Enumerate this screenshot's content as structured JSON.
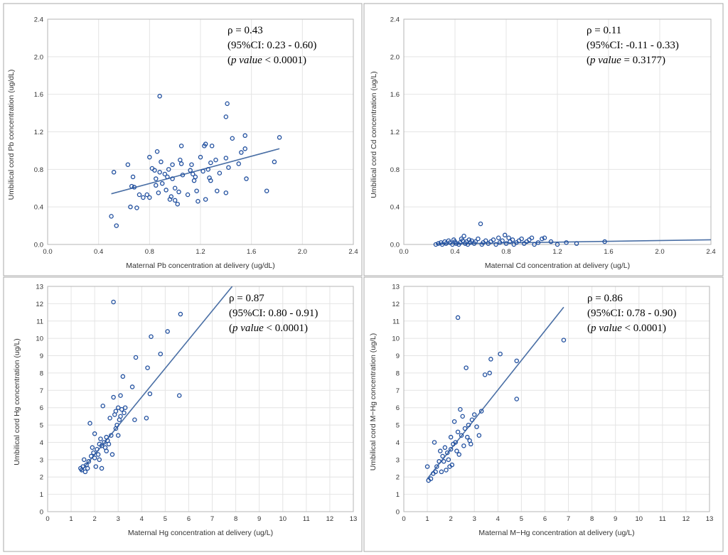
{
  "colors": {
    "point": "#1f4e9e",
    "fit_line": "#4a6fa5",
    "grid": "#e4e4e4",
    "frame": "#a8a8a8"
  },
  "chart_data": [
    {
      "type": "scatter",
      "id": "pb",
      "xlabel": "Maternal Pb concentration at delivery (ug/dL)",
      "ylabel": "Umbilical cord Pb concentration (ug/dL)",
      "xlim": [
        0,
        2.4
      ],
      "ylim": [
        0,
        2.4
      ],
      "xticks": [
        0,
        0.4,
        0.8,
        1.2,
        1.6,
        2.0,
        2.4
      ],
      "yticks": [
        0,
        0.4,
        0.8,
        1.2,
        1.6,
        2.0,
        2.4
      ],
      "tick_decimals": 1,
      "grid": true,
      "annotation": {
        "rho": "ρ = 0.43",
        "ci": "(95%CI: 0.23 - 0.60)",
        "p_label": "p value",
        "p_rest": " < 0.0001)"
      },
      "fit_line": {
        "x": [
          0.5,
          1.82
        ],
        "y": [
          0.54,
          1.02
        ]
      },
      "points": [
        [
          0.5,
          0.3
        ],
        [
          0.52,
          0.77
        ],
        [
          0.54,
          0.2
        ],
        [
          0.63,
          0.85
        ],
        [
          0.65,
          0.4
        ],
        [
          0.66,
          0.62
        ],
        [
          0.67,
          0.72
        ],
        [
          0.68,
          0.61
        ],
        [
          0.7,
          0.39
        ],
        [
          0.72,
          0.53
        ],
        [
          0.75,
          0.5
        ],
        [
          0.78,
          0.53
        ],
        [
          0.8,
          0.93
        ],
        [
          0.8,
          0.5
        ],
        [
          0.82,
          0.81
        ],
        [
          0.84,
          0.79
        ],
        [
          0.85,
          0.7
        ],
        [
          0.85,
          0.63
        ],
        [
          0.86,
          0.99
        ],
        [
          0.87,
          0.55
        ],
        [
          0.88,
          1.58
        ],
        [
          0.88,
          0.77
        ],
        [
          0.89,
          0.88
        ],
        [
          0.9,
          0.65
        ],
        [
          0.92,
          0.75
        ],
        [
          0.93,
          0.58
        ],
        [
          0.94,
          0.72
        ],
        [
          0.95,
          0.8
        ],
        [
          0.96,
          0.48
        ],
        [
          0.97,
          0.51
        ],
        [
          0.98,
          0.85
        ],
        [
          0.98,
          0.7
        ],
        [
          1.0,
          0.6
        ],
        [
          1.0,
          0.47
        ],
        [
          1.02,
          0.43
        ],
        [
          1.03,
          0.56
        ],
        [
          1.04,
          0.9
        ],
        [
          1.05,
          1.05
        ],
        [
          1.05,
          0.86
        ],
        [
          1.06,
          0.74
        ],
        [
          1.1,
          0.53
        ],
        [
          1.12,
          0.79
        ],
        [
          1.13,
          0.85
        ],
        [
          1.14,
          0.75
        ],
        [
          1.15,
          0.68
        ],
        [
          1.16,
          0.72
        ],
        [
          1.17,
          0.57
        ],
        [
          1.18,
          0.46
        ],
        [
          1.2,
          0.93
        ],
        [
          1.22,
          0.78
        ],
        [
          1.23,
          1.05
        ],
        [
          1.24,
          1.07
        ],
        [
          1.24,
          0.48
        ],
        [
          1.26,
          0.8
        ],
        [
          1.27,
          0.71
        ],
        [
          1.28,
          0.87
        ],
        [
          1.28,
          0.68
        ],
        [
          1.29,
          1.05
        ],
        [
          1.32,
          0.9
        ],
        [
          1.33,
          0.57
        ],
        [
          1.35,
          0.76
        ],
        [
          1.4,
          1.36
        ],
        [
          1.41,
          1.5
        ],
        [
          1.4,
          0.92
        ],
        [
          1.4,
          0.55
        ],
        [
          1.42,
          0.82
        ],
        [
          1.45,
          1.13
        ],
        [
          1.5,
          0.86
        ],
        [
          1.52,
          0.98
        ],
        [
          1.55,
          1.16
        ],
        [
          1.55,
          1.02
        ],
        [
          1.56,
          0.7
        ],
        [
          1.72,
          0.57
        ],
        [
          1.78,
          0.88
        ],
        [
          1.82,
          1.14
        ]
      ]
    },
    {
      "type": "scatter",
      "id": "cd",
      "xlabel": "Maternal Cd concentration at delivery (ug/L)",
      "ylabel": "Umbilical cord Cd concentration (ug/L)",
      "xlim": [
        0,
        2.4
      ],
      "ylim": [
        0,
        2.4
      ],
      "xticks": [
        0,
        0.4,
        0.8,
        1.2,
        1.6,
        2.0,
        2.4
      ],
      "yticks": [
        0,
        0.4,
        0.8,
        1.2,
        1.6,
        2.0,
        2.4
      ],
      "tick_decimals": 1,
      "grid": true,
      "annotation": {
        "rho": "ρ = 0.11",
        "ci": "(95%CI: -0.11 - 0.33)",
        "p_label": "p value",
        "p_rest": "  = 0.3177)"
      },
      "fit_line": {
        "x": [
          0.25,
          2.4
        ],
        "y": [
          0.005,
          0.05
        ]
      },
      "points": [
        [
          0.25,
          0.0
        ],
        [
          0.27,
          0.01
        ],
        [
          0.29,
          0.02
        ],
        [
          0.3,
          0.0
        ],
        [
          0.32,
          0.03
        ],
        [
          0.33,
          0.01
        ],
        [
          0.35,
          0.04
        ],
        [
          0.36,
          0.02
        ],
        [
          0.38,
          0.0
        ],
        [
          0.39,
          0.05
        ],
        [
          0.4,
          0.03
        ],
        [
          0.41,
          0.01
        ],
        [
          0.43,
          0.0
        ],
        [
          0.44,
          0.02
        ],
        [
          0.45,
          0.06
        ],
        [
          0.46,
          0.04
        ],
        [
          0.47,
          0.09
        ],
        [
          0.48,
          0.01
        ],
        [
          0.49,
          0.03
        ],
        [
          0.5,
          0.0
        ],
        [
          0.51,
          0.05
        ],
        [
          0.52,
          0.02
        ],
        [
          0.53,
          0.04
        ],
        [
          0.55,
          0.01
        ],
        [
          0.56,
          0.03
        ],
        [
          0.58,
          0.06
        ],
        [
          0.6,
          0.22
        ],
        [
          0.61,
          0.0
        ],
        [
          0.62,
          0.02
        ],
        [
          0.64,
          0.04
        ],
        [
          0.66,
          0.01
        ],
        [
          0.68,
          0.03
        ],
        [
          0.7,
          0.05
        ],
        [
          0.72,
          0.0
        ],
        [
          0.74,
          0.07
        ],
        [
          0.75,
          0.02
        ],
        [
          0.77,
          0.04
        ],
        [
          0.79,
          0.1
        ],
        [
          0.8,
          0.01
        ],
        [
          0.82,
          0.07
        ],
        [
          0.83,
          0.03
        ],
        [
          0.85,
          0.05
        ],
        [
          0.86,
          0.0
        ],
        [
          0.88,
          0.02
        ],
        [
          0.9,
          0.04
        ],
        [
          0.92,
          0.06
        ],
        [
          0.94,
          0.01
        ],
        [
          0.96,
          0.03
        ],
        [
          0.98,
          0.05
        ],
        [
          1.0,
          0.07
        ],
        [
          1.02,
          0.0
        ],
        [
          1.05,
          0.02
        ],
        [
          1.08,
          0.06
        ],
        [
          1.1,
          0.07
        ],
        [
          1.15,
          0.03
        ],
        [
          1.2,
          0.0
        ],
        [
          1.27,
          0.02
        ],
        [
          1.35,
          0.01
        ],
        [
          1.57,
          0.03
        ]
      ]
    },
    {
      "type": "scatter",
      "id": "hg",
      "xlabel": "Maternal Hg concentration at delivery (ug/L)",
      "ylabel": "Umbilical cord Hg concentration (ug/L)",
      "xlim": [
        0,
        13
      ],
      "ylim": [
        0,
        13
      ],
      "xticks": [
        0,
        1,
        2,
        3,
        4,
        5,
        6,
        7,
        8,
        9,
        10,
        11,
        12,
        13
      ],
      "yticks": [
        0,
        1,
        2,
        3,
        4,
        5,
        6,
        7,
        8,
        9,
        10,
        11,
        12,
        13
      ],
      "tick_decimals": 0,
      "grid": true,
      "annotation": {
        "rho": "ρ = 0.87",
        "ci": "(95%CI: 0.80 - 0.91)",
        "p_label": "p value",
        "p_rest": " < 0.0001)"
      },
      "fit_line": {
        "x": [
          1.4,
          7.85
        ],
        "y": [
          2.3,
          13.0
        ]
      },
      "points": [
        [
          1.4,
          2.5
        ],
        [
          1.45,
          2.4
        ],
        [
          1.5,
          2.6
        ],
        [
          1.55,
          3.0
        ],
        [
          1.6,
          2.3
        ],
        [
          1.65,
          2.7
        ],
        [
          1.7,
          2.5
        ],
        [
          1.75,
          2.9
        ],
        [
          1.8,
          5.1
        ],
        [
          1.85,
          3.2
        ],
        [
          1.9,
          3.7
        ],
        [
          1.95,
          3.4
        ],
        [
          2.0,
          3.1
        ],
        [
          2.0,
          4.5
        ],
        [
          2.05,
          2.6
        ],
        [
          2.1,
          3.6
        ],
        [
          2.15,
          3.3
        ],
        [
          2.2,
          3.9
        ],
        [
          2.2,
          3.0
        ],
        [
          2.25,
          4.2
        ],
        [
          2.3,
          3.8
        ],
        [
          2.3,
          2.5
        ],
        [
          2.35,
          6.1
        ],
        [
          2.4,
          4.0
        ],
        [
          2.45,
          3.7
        ],
        [
          2.5,
          4.3
        ],
        [
          2.5,
          3.5
        ],
        [
          2.55,
          4.1
        ],
        [
          2.6,
          3.9
        ],
        [
          2.65,
          5.4
        ],
        [
          2.7,
          4.4
        ],
        [
          2.75,
          3.3
        ],
        [
          2.8,
          12.1
        ],
        [
          2.8,
          6.6
        ],
        [
          2.85,
          5.6
        ],
        [
          2.9,
          5.8
        ],
        [
          2.9,
          4.8
        ],
        [
          2.95,
          5.0
        ],
        [
          3.0,
          6.0
        ],
        [
          3.0,
          4.4
        ],
        [
          3.05,
          5.3
        ],
        [
          3.1,
          6.7
        ],
        [
          3.1,
          5.5
        ],
        [
          3.15,
          5.9
        ],
        [
          3.2,
          7.8
        ],
        [
          3.25,
          5.7
        ],
        [
          3.3,
          6.0
        ],
        [
          3.6,
          7.2
        ],
        [
          3.7,
          5.3
        ],
        [
          3.75,
          8.9
        ],
        [
          4.2,
          5.4
        ],
        [
          4.25,
          8.3
        ],
        [
          4.35,
          6.8
        ],
        [
          4.4,
          10.1
        ],
        [
          4.8,
          9.1
        ],
        [
          5.1,
          10.4
        ],
        [
          5.6,
          6.7
        ],
        [
          5.65,
          11.4
        ]
      ]
    },
    {
      "type": "scatter",
      "id": "mhg",
      "xlabel": "Maternal M−Hg concentration at delivery (ug/L)",
      "ylabel": "Umbilical cord M−Hg concentration (ug/L)",
      "xlim": [
        0,
        13
      ],
      "ylim": [
        0,
        13
      ],
      "xticks": [
        0,
        1,
        2,
        3,
        4,
        5,
        6,
        7,
        8,
        9,
        10,
        11,
        12,
        13
      ],
      "yticks": [
        0,
        1,
        2,
        3,
        4,
        5,
        6,
        7,
        8,
        9,
        10,
        11,
        12,
        13
      ],
      "tick_decimals": 0,
      "grid": true,
      "annotation": {
        "rho": "ρ = 0.86",
        "ci": "(95%CI: 0.78 - 0.90)",
        "p_label": "p value",
        "p_rest": "  < 0.0001)"
      },
      "fit_line": {
        "x": [
          1.0,
          6.8
        ],
        "y": [
          1.9,
          11.8
        ]
      },
      "points": [
        [
          1.0,
          2.6
        ],
        [
          1.05,
          1.8
        ],
        [
          1.15,
          1.9
        ],
        [
          1.25,
          2.2
        ],
        [
          1.3,
          4.0
        ],
        [
          1.35,
          2.3
        ],
        [
          1.4,
          2.6
        ],
        [
          1.5,
          2.9
        ],
        [
          1.55,
          3.5
        ],
        [
          1.6,
          2.3
        ],
        [
          1.65,
          3.2
        ],
        [
          1.7,
          2.9
        ],
        [
          1.75,
          3.7
        ],
        [
          1.8,
          2.4
        ],
        [
          1.85,
          3.4
        ],
        [
          1.9,
          3.0
        ],
        [
          1.95,
          2.6
        ],
        [
          2.0,
          3.6
        ],
        [
          2.0,
          4.3
        ],
        [
          2.05,
          2.7
        ],
        [
          2.1,
          3.9
        ],
        [
          2.15,
          5.2
        ],
        [
          2.2,
          4.0
        ],
        [
          2.25,
          3.5
        ],
        [
          2.3,
          4.6
        ],
        [
          2.3,
          11.2
        ],
        [
          2.35,
          3.3
        ],
        [
          2.4,
          5.9
        ],
        [
          2.45,
          4.4
        ],
        [
          2.5,
          5.5
        ],
        [
          2.55,
          3.8
        ],
        [
          2.6,
          4.8
        ],
        [
          2.65,
          8.3
        ],
        [
          2.7,
          4.3
        ],
        [
          2.75,
          5.0
        ],
        [
          2.8,
          4.1
        ],
        [
          2.85,
          3.9
        ],
        [
          2.9,
          5.3
        ],
        [
          3.0,
          5.6
        ],
        [
          3.1,
          4.9
        ],
        [
          3.2,
          4.4
        ],
        [
          3.3,
          5.8
        ],
        [
          3.45,
          7.9
        ],
        [
          3.65,
          8.0
        ],
        [
          3.7,
          8.8
        ],
        [
          4.1,
          9.1
        ],
        [
          4.8,
          6.5
        ],
        [
          4.8,
          8.7
        ],
        [
          6.8,
          9.9
        ]
      ]
    }
  ]
}
